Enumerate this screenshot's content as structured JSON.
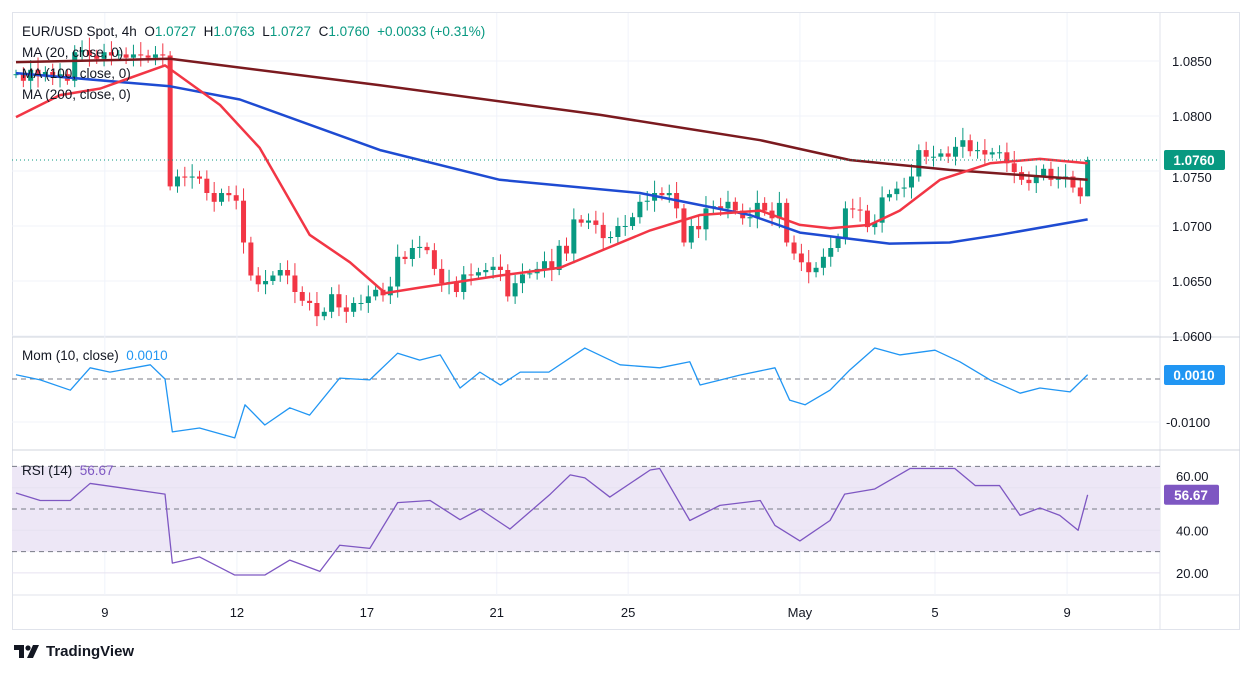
{
  "header": {
    "symbol": "EUR/USD Spot",
    "interval": "4h",
    "o_label": "O",
    "open": "1.0727",
    "h_label": "H",
    "high": "1.0763",
    "l_label": "L",
    "low": "1.0727",
    "c_label": "C",
    "close": "1.0760",
    "change": "+0.0033 (+0.31%)"
  },
  "indicators": {
    "ma20": "MA (20, close, 0)",
    "ma100": "MA (100, close, 0)",
    "ma200": "MA (200, close, 0)",
    "mom_title": "Mom (10, close)",
    "mom_value": "0.0010",
    "rsi_title": "RSI (14)",
    "rsi_value": "56.67"
  },
  "colors": {
    "up": "#089981",
    "down": "#f23645",
    "ma20": "#f23645",
    "ma100": "#1e4bd2",
    "ma200": "#7b1a1f",
    "mom": "#2196f3",
    "rsi": "#7e57c2",
    "rsi_band": "#ede7f6"
  },
  "branding": "TradingView",
  "chart_data": [
    {
      "type": "candlestick",
      "title": "EUR/USD Spot, 4h",
      "ylim": [
        1.0595,
        1.087
      ],
      "y_ticks": [
        "1.0600",
        "1.0650",
        "1.0700",
        "1.0750",
        "1.0800",
        "1.0850"
      ],
      "last_price_label": "1.0760",
      "x_ticks": [
        {
          "label": "9",
          "at": 12.1
        },
        {
          "label": "12",
          "at": 30.1
        },
        {
          "label": "17",
          "at": 47.8
        },
        {
          "label": "21",
          "at": 65.5
        },
        {
          "label": "25",
          "at": 83.4
        },
        {
          "label": "May",
          "at": 106.8
        },
        {
          "label": "5",
          "at": 125.2
        },
        {
          "label": "9",
          "at": 143.2
        }
      ],
      "last_candle": {
        "open": 1.0727,
        "high": 1.0763,
        "low": 1.0727,
        "close": 1.076
      },
      "closes": [
        1.0838,
        1.0832,
        1.0842,
        1.0836,
        1.084,
        1.0835,
        1.0838,
        1.0832,
        1.0858,
        1.086,
        1.0855,
        1.0852,
        1.0858,
        1.0855,
        1.0856,
        1.0853,
        1.0856,
        1.0855,
        1.0853,
        1.0856,
        1.0855,
        1.0736,
        1.0745,
        1.0744,
        1.0745,
        1.0743,
        1.073,
        1.0722,
        1.073,
        1.0728,
        1.0723,
        1.0685,
        1.0655,
        1.0647,
        1.065,
        1.0655,
        1.066,
        1.0655,
        1.064,
        1.0632,
        1.063,
        1.0618,
        1.0622,
        1.0638,
        1.0626,
        1.0622,
        1.063,
        1.063,
        1.0636,
        1.0642,
        1.0637,
        1.0645,
        1.0672,
        1.067,
        1.068,
        1.0681,
        1.0678,
        1.0661,
        1.0648,
        1.0649,
        1.064,
        1.0656,
        1.0655,
        1.0658,
        1.066,
        1.0663,
        1.066,
        1.0636,
        1.0648,
        1.0656,
        1.0657,
        1.0661,
        1.0668,
        1.066,
        1.0682,
        1.0675,
        1.0706,
        1.0703,
        1.0705,
        1.0701,
        1.0689,
        1.069,
        1.07,
        1.07,
        1.0708,
        1.0722,
        1.0723,
        1.073,
        1.0728,
        1.073,
        1.0716,
        1.0685,
        1.07,
        1.0697,
        1.0716,
        1.0718,
        1.0716,
        1.0722,
        1.0714,
        1.0707,
        1.0708,
        1.0721,
        1.0714,
        1.0707,
        1.0721,
        1.0685,
        1.0675,
        1.0667,
        1.0658,
        1.0662,
        1.0672,
        1.068,
        1.0689,
        1.0716,
        1.0715,
        1.0714,
        1.0699,
        1.0703,
        1.0726,
        1.0729,
        1.0734,
        1.0735,
        1.0745,
        1.0769,
        1.0763,
        1.0763,
        1.0766,
        1.0763,
        1.0772,
        1.0778,
        1.0768,
        1.0769,
        1.0765,
        1.0767,
        1.0767,
        1.0757,
        1.0749,
        1.0742,
        1.0739,
        1.0745,
        1.0752,
        1.0742,
        1.0745,
        1.0745,
        1.0735,
        1.0727,
        1.076
      ],
      "series": [
        {
          "name": "MA (20, close, 0)",
          "points": [
            [
              0,
              1.0799
            ],
            [
              6,
              1.0819
            ],
            [
              11.5,
              1.0825
            ],
            [
              20.3,
              1.0846
            ],
            [
              27.8,
              1.081
            ],
            [
              33.2,
              1.0771
            ],
            [
              40,
              1.0692
            ],
            [
              45.5,
              1.0667
            ],
            [
              50.3,
              1.0639
            ],
            [
              55,
              1.0644
            ],
            [
              66,
              1.0655
            ],
            [
              74.1,
              1.0662
            ],
            [
              86.4,
              1.0696
            ],
            [
              93.2,
              1.071
            ],
            [
              101.4,
              1.0714
            ],
            [
              106.8,
              1.0701
            ],
            [
              110.9,
              1.0698
            ],
            [
              116.3,
              1.0701
            ],
            [
              120.4,
              1.0714
            ],
            [
              125.9,
              1.0742
            ],
            [
              132.7,
              1.0757
            ],
            [
              139.5,
              1.0761
            ],
            [
              146,
              1.0757
            ]
          ]
        },
        {
          "name": "MA (100, close, 0)",
          "points": [
            [
              0,
              1.0839
            ],
            [
              21,
              1.0827
            ],
            [
              30.5,
              1.0815
            ],
            [
              49.6,
              1.0769
            ],
            [
              65.9,
              1.0742
            ],
            [
              85,
              1.073
            ],
            [
              100,
              1.071
            ],
            [
              106.8,
              1.0694
            ],
            [
              119,
              1.0684
            ],
            [
              127.2,
              1.0685
            ],
            [
              134,
              1.0692
            ],
            [
              146,
              1.0706
            ]
          ]
        },
        {
          "name": "MA (200, close, 0)",
          "points": [
            [
              0,
              1.0849
            ],
            [
              21,
              1.0852
            ],
            [
              49.6,
              1.0828
            ],
            [
              79.6,
              1.0801
            ],
            [
              101.4,
              1.0778
            ],
            [
              113.6,
              1.076
            ],
            [
              127.2,
              1.0751
            ],
            [
              146,
              1.0742
            ]
          ]
        }
      ]
    },
    {
      "type": "line",
      "title": "Mom (10, close)",
      "ylim": [
        -0.0165,
        0.01
      ],
      "y_ticks": [
        "-0.0100"
      ],
      "zero_line": 0,
      "points": [
        [
          0,
          0.001
        ],
        [
          3.3,
          -0.0002
        ],
        [
          7.4,
          -0.0026
        ],
        [
          10.1,
          0.0026
        ],
        [
          12.8,
          0.0016
        ],
        [
          18.3,
          0.0033
        ],
        [
          20.3,
          0.0
        ],
        [
          21.3,
          -0.0123
        ],
        [
          25,
          -0.0114
        ],
        [
          29.8,
          -0.0137
        ],
        [
          31.2,
          -0.006
        ],
        [
          33.9,
          -0.0107
        ],
        [
          37.3,
          -0.0067
        ],
        [
          40,
          -0.0084
        ],
        [
          44.1,
          0.0002
        ],
        [
          48.2,
          -0.0002
        ],
        [
          52,
          0.006
        ],
        [
          55,
          0.0044
        ],
        [
          57.8,
          0.0056
        ],
        [
          60.5,
          -0.0021
        ],
        [
          63.2,
          0.0016
        ],
        [
          66,
          -0.0014
        ],
        [
          68.7,
          0.0016
        ],
        [
          72.6,
          0.0016
        ],
        [
          77.5,
          0.0072
        ],
        [
          82.3,
          0.0033
        ],
        [
          87.7,
          0.0026
        ],
        [
          91.8,
          0.004
        ],
        [
          93.2,
          -0.0014
        ],
        [
          98.6,
          0.0009
        ],
        [
          103.4,
          0.0026
        ],
        [
          105.4,
          -0.0049
        ],
        [
          107.5,
          -0.006
        ],
        [
          110.9,
          -0.0026
        ],
        [
          113.6,
          0.0021
        ],
        [
          117,
          0.0072
        ],
        [
          120.4,
          0.0056
        ],
        [
          125.2,
          0.0067
        ],
        [
          128.6,
          0.004
        ],
        [
          132.7,
          -0.0002
        ],
        [
          136.8,
          -0.0033
        ],
        [
          139.5,
          -0.0021
        ],
        [
          143.6,
          -0.003
        ],
        [
          146,
          0.001
        ]
      ]
    },
    {
      "type": "line",
      "title": "RSI (14)",
      "ylim": [
        10,
        85
      ],
      "y_ticks": [
        "20.00",
        "40.00",
        "60.00"
      ],
      "bands": [
        30,
        50,
        70
      ],
      "points": [
        [
          0,
          57.5
        ],
        [
          3.3,
          54
        ],
        [
          7.4,
          54
        ],
        [
          10.1,
          62
        ],
        [
          14.2,
          60
        ],
        [
          20.3,
          57
        ],
        [
          21.3,
          24.6
        ],
        [
          25,
          27.5
        ],
        [
          29.8,
          19
        ],
        [
          33.9,
          19
        ],
        [
          37.3,
          26
        ],
        [
          41.4,
          20.7
        ],
        [
          44.1,
          33
        ],
        [
          48.2,
          31.5
        ],
        [
          52,
          53
        ],
        [
          56.4,
          54
        ],
        [
          60.5,
          45
        ],
        [
          63.2,
          50
        ],
        [
          67.3,
          40.6
        ],
        [
          72.8,
          57
        ],
        [
          75.5,
          66
        ],
        [
          77.5,
          64.6
        ],
        [
          80.9,
          55.6
        ],
        [
          86.4,
          68.3
        ],
        [
          87.7,
          69
        ],
        [
          91.8,
          44.6
        ],
        [
          95.9,
          51.7
        ],
        [
          101.4,
          54
        ],
        [
          103.4,
          42.3
        ],
        [
          106.8,
          35
        ],
        [
          110.9,
          44.6
        ],
        [
          112.9,
          57
        ],
        [
          117,
          59.4
        ],
        [
          121.8,
          69
        ],
        [
          127.9,
          69
        ],
        [
          130.7,
          61
        ],
        [
          134,
          61
        ],
        [
          136.8,
          47
        ],
        [
          139.5,
          50.5
        ],
        [
          142.2,
          47
        ],
        [
          144.7,
          40
        ],
        [
          146,
          56.67
        ]
      ]
    }
  ]
}
